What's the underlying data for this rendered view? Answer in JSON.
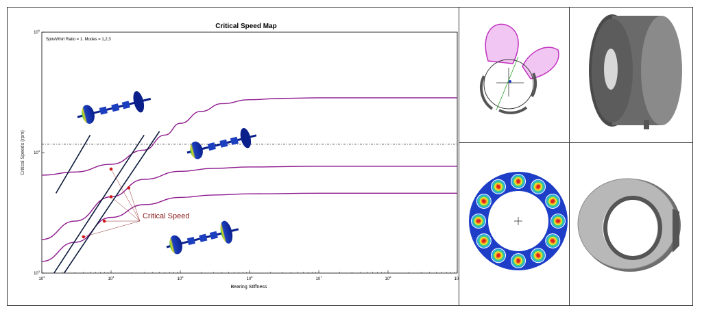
{
  "chart_data": {
    "type": "line",
    "title": "Critical Speed Map",
    "subtitle": "Spin/Whirl Ratio = 1. Modes = 1,2,3",
    "xlabel": "Bearing Stiffness",
    "ylabel": "Critical Speeds (rpm)",
    "x_scale": "log",
    "y_scale": "log",
    "xlim": [
      1000,
      100000000000
    ],
    "ylim": [
      1000,
      100000
    ],
    "x_ticks": [
      {
        "value": 1000,
        "base": "10",
        "exp": "3"
      },
      {
        "value": 10000,
        "base": "10",
        "exp": "4"
      },
      {
        "value": 100000,
        "base": "10",
        "exp": "5"
      },
      {
        "value": 1000000,
        "base": "10",
        "exp": "6"
      },
      {
        "value": 10000000,
        "base": "10",
        "exp": "7"
      },
      {
        "value": 100000000,
        "base": "10",
        "exp": "8"
      },
      {
        "value": 1000000000,
        "base": "10",
        "exp": "9"
      }
    ],
    "y_ticks": [
      {
        "value": 1000,
        "base": "10",
        "exp": "3"
      },
      {
        "value": 10000,
        "base": "10",
        "exp": "4"
      },
      {
        "value": 100000,
        "base": "10",
        "exp": "5"
      }
    ],
    "series_color": "#8e1a8e",
    "series": [
      {
        "x": [
          1000,
          3000,
          10000,
          30000,
          60000,
          100000,
          200000,
          400000,
          1000000,
          3000000,
          10000000,
          1000000000
        ],
        "y": [
          6500,
          6900,
          8000,
          10500,
          14000,
          17500,
          22000,
          25500,
          27500,
          28200,
          28500,
          28500
        ]
      },
      {
        "x": [
          1000,
          3000,
          10000,
          30000,
          100000,
          300000,
          1000000,
          10000000,
          1000000000
        ],
        "y": [
          1900,
          2700,
          4300,
          6000,
          7000,
          7400,
          7600,
          7700,
          7700
        ]
      },
      {
        "x": [
          1000,
          3000,
          10000,
          30000,
          100000,
          300000,
          1000000,
          10000000,
          1000000000
        ],
        "y": [
          1250,
          1800,
          2900,
          3700,
          4250,
          4450,
          4550,
          4600,
          4600
        ]
      }
    ],
    "operating_speed_line": 11800,
    "bearing_lines": [
      {
        "x": [
          1600,
          5000
        ],
        "y": [
          4600,
          14000
        ]
      },
      {
        "x": [
          1500,
          30000
        ],
        "y": [
          1000,
          14000
        ]
      },
      {
        "x": [
          2100,
          50000
        ],
        "y": [
          1000,
          15000
        ]
      }
    ],
    "intersections": [
      {
        "x": 10000,
        "y": 7300
      },
      {
        "x": 10000,
        "y": 4300
      },
      {
        "x": 18000,
        "y": 5100
      },
      {
        "x": 8000,
        "y": 2700
      },
      {
        "x": 4000,
        "y": 2000
      }
    ],
    "annotation": {
      "text": "Critical Speed",
      "x": 45000,
      "y": 2500
    }
  }
}
